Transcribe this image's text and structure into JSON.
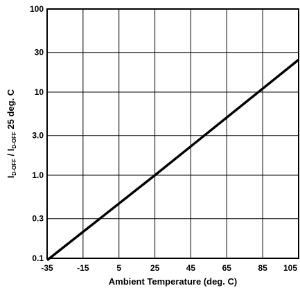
{
  "chart_data": {
    "type": "line",
    "title": "",
    "xlabel": "Ambient Temperature (deg. C)",
    "ylabel": {
      "i1": "I",
      "sub1": "D-OFF",
      "sep": " / I",
      "sub2": "D-OFF",
      "tail": " 25 deg. C"
    },
    "x_scale": "linear",
    "y_scale": "log",
    "xlim": [
      -35,
      105
    ],
    "ylim": [
      0.1,
      100
    ],
    "x_ticks": [
      -35,
      -15,
      5,
      25,
      45,
      65,
      85,
      105
    ],
    "x_tick_labels": [
      "-35",
      "-15",
      "5",
      "25",
      "45",
      "65",
      "85",
      "105"
    ],
    "y_ticks": [
      0.1,
      0.3,
      1.0,
      3.0,
      10,
      30,
      100
    ],
    "y_tick_labels": [
      "0.1",
      "0.3",
      "1.0",
      "3.0",
      "10",
      "30",
      "100"
    ],
    "grid": true,
    "legend": "none",
    "series": [
      {
        "color": "#000000",
        "x": [
          -35,
          25,
          85,
          105
        ],
        "y": [
          0.095,
          1.0,
          11.0,
          24.5
        ]
      }
    ]
  }
}
